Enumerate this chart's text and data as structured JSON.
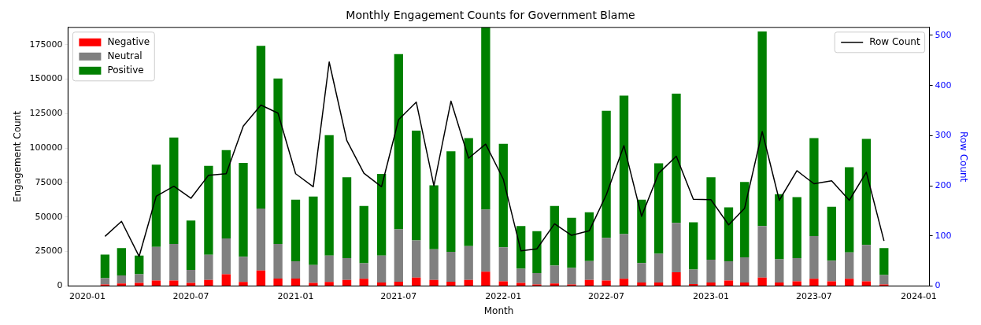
{
  "chart_data": {
    "type": "bar",
    "title": "Monthly Engagement Counts for Government Blame",
    "xlabel": "Month",
    "ylabel": "Engagement Count",
    "y2label": "Row Count",
    "stacked": true,
    "legend": "top left",
    "marker": "none",
    "x": [
      "2020-02",
      "2020-03",
      "2020-04",
      "2020-05",
      "2020-06",
      "2020-07",
      "2020-08",
      "2020-09",
      "2020-10",
      "2020-11",
      "2020-12",
      "2021-01",
      "2021-02",
      "2021-03",
      "2021-04",
      "2021-05",
      "2021-06",
      "2021-07",
      "2021-08",
      "2021-09",
      "2021-10",
      "2021-11",
      "2021-12",
      "2022-01",
      "2022-02",
      "2022-03",
      "2022-04",
      "2022-05",
      "2022-06",
      "2022-07",
      "2022-08",
      "2022-09",
      "2022-10",
      "2022-11",
      "2022-12",
      "2023-01",
      "2023-02",
      "2023-03",
      "2023-04",
      "2023-05",
      "2023-06",
      "2023-07",
      "2023-08",
      "2023-09",
      "2023-10",
      "2023-11"
    ],
    "series": [
      {
        "name": "Negative",
        "color": "#ff0000",
        "values": [
          1100,
          1800,
          2200,
          4000,
          4000,
          2200,
          4300,
          8500,
          2900,
          11200,
          5400,
          5400,
          2200,
          2900,
          4300,
          5200,
          2500,
          3100,
          6100,
          4300,
          3100,
          4300,
          10300,
          3400,
          2200,
          1100,
          1800,
          1100,
          4300,
          4000,
          5200,
          2500,
          2500,
          9900,
          1300,
          2500,
          4000,
          2500,
          6100,
          2500,
          3400,
          5200,
          3400,
          5200,
          3400,
          1100
        ]
      },
      {
        "name": "Neutral",
        "color": "#808080",
        "values": [
          4500,
          5800,
          6300,
          24400,
          26400,
          9400,
          18300,
          25900,
          18300,
          45000,
          25000,
          12500,
          13000,
          19200,
          15900,
          11300,
          19600,
          37900,
          27000,
          22300,
          21700,
          24600,
          45200,
          24600,
          10300,
          8300,
          13000,
          11900,
          13800,
          30900,
          32400,
          14100,
          20800,
          35800,
          10600,
          16500,
          13900,
          18300,
          37300,
          16800,
          16800,
          31000,
          15000,
          19200,
          26400,
          6900
        ]
      },
      {
        "name": "Positive",
        "color": "#008000",
        "values": [
          17200,
          19900,
          13500,
          59600,
          77200,
          35900,
          64500,
          64100,
          68100,
          117900,
          120000,
          44700,
          49700,
          87300,
          58600,
          41500,
          59100,
          127100,
          79500,
          46400,
          72800,
          78300,
          132000,
          75100,
          30900,
          30400,
          43200,
          36400,
          35400,
          92200,
          100500,
          46000,
          65700,
          93700,
          34200,
          59800,
          39100,
          54600,
          141200,
          47200,
          44200,
          71000,
          39100,
          61700,
          76900,
          19500
        ]
      },
      {
        "name": "Row Count",
        "type": "line",
        "axis": "y2",
        "color": "#000000",
        "values": [
          99,
          129,
          59,
          179,
          199,
          175,
          221,
          224,
          319,
          361,
          345,
          224,
          198,
          447,
          290,
          225,
          198,
          332,
          367,
          200,
          369,
          255,
          283,
          213,
          70,
          74,
          124,
          101,
          110,
          182,
          280,
          139,
          225,
          259,
          173,
          172,
          122,
          155,
          308,
          171,
          230,
          204,
          210,
          171,
          227,
          90
        ]
      }
    ],
    "xlim": [
      "2019-11-28",
      "2024-01-20"
    ],
    "xticks": [
      "2020-01",
      "2020-07",
      "2021-01",
      "2021-07",
      "2022-01",
      "2022-07",
      "2023-01",
      "2023-07",
      "2024-01"
    ],
    "ylim": [
      0,
      187500
    ],
    "yticks": [
      0,
      25000,
      50000,
      75000,
      100000,
      125000,
      150000,
      175000
    ],
    "y2lim": [
      0,
      516
    ],
    "y2ticks": [
      0,
      100,
      200,
      300,
      400,
      500
    ]
  }
}
